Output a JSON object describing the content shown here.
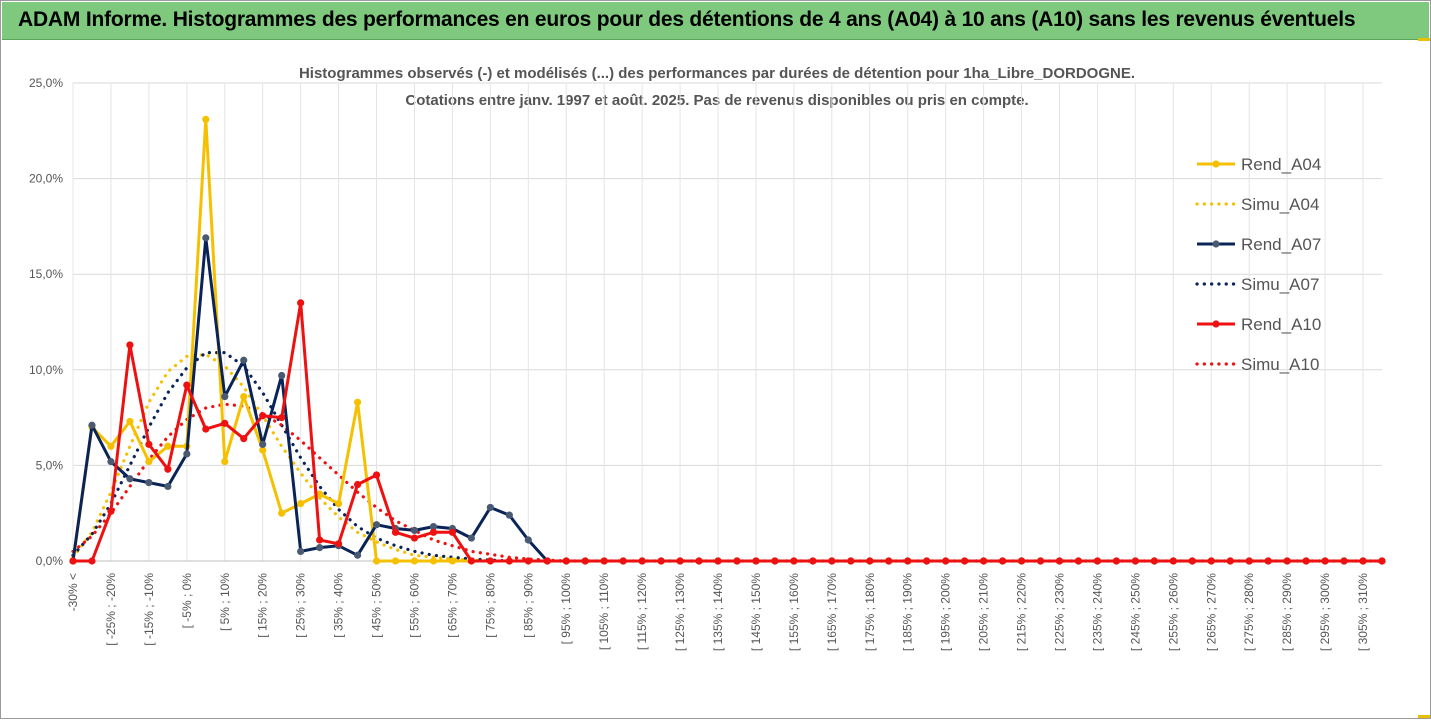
{
  "banner": {
    "title": "ADAM Informe. Histogrammes des performances en euros pour des détentions de 4 ans (A04) à 10 ans (A10) sans les revenus éventuels"
  },
  "colors": {
    "banner_bg": "#7fc97f",
    "A04": "#f5c000",
    "A07": "#0a2458",
    "A10": "#ee1111",
    "grid": "#d9d9d9"
  },
  "chart_data": {
    "type": "line",
    "title_line1": "Histogrammes observés (-) et modélisés (...) des performances par durées de détention pour 1ha_Libre_DORDOGNE.",
    "title_line2": "Cotations entre janv. 1997 et août. 2025. Pas de revenus disponibles ou pris en compte.",
    "ylim": [
      0,
      25
    ],
    "yticks": [
      "0,0%",
      "5,0%",
      "10,0%",
      "15,0%",
      "20,0%",
      "25,0%"
    ],
    "x_labels": [
      "-30% <",
      "[ -25% ; -20%",
      "[ -15% ; -10%",
      "[ -5% ; 0%",
      "[ 5% ; 10%",
      "[ 15% ; 20%",
      "[ 25% ; 30%",
      "[ 35% ; 40%",
      "[ 45% ; 50%",
      "[ 55% ; 60%",
      "[ 65% ; 70%",
      "[ 75% ; 80%",
      "[ 85% ; 90%",
      "[ 95% ; 100%",
      "[ 105% ; 110%",
      "[ 115% ; 120%",
      "[ 125% ; 130%",
      "[ 135% ; 140%",
      "[ 145% ; 150%",
      "[ 155% ; 160%",
      "[ 165% ; 170%",
      "[ 175% ; 180%",
      "[ 185% ; 190%",
      "[ 195% ; 200%",
      "[ 205% ; 210%",
      "[ 215% ; 220%",
      "[ 225% ; 230%",
      "[ 235% ; 240%",
      "[ 245% ; 250%",
      "[ 255% ; 260%",
      "[ 265% ; 270%",
      "[ 275% ; 280%",
      "[ 285% ; 290%",
      "[ 295% ; 300%",
      "[ 305% ; 310%"
    ],
    "series": [
      {
        "name": "Rend_A04",
        "style": "solid",
        "color": "#f5c000",
        "values": [
          0,
          7.0,
          6.0,
          7.3,
          5.2,
          6.0,
          6.0,
          23.1,
          5.2,
          8.6,
          5.8,
          2.5,
          3.0,
          3.5,
          3.0,
          8.3,
          0,
          0,
          0,
          0,
          0,
          0,
          0,
          0,
          0,
          0,
          0,
          0,
          0,
          0,
          0,
          0,
          0,
          0,
          0,
          0,
          0,
          0,
          0,
          0,
          0,
          0,
          0,
          0,
          0,
          0,
          0,
          0,
          0,
          0,
          0,
          0,
          0,
          0,
          0,
          0,
          0,
          0,
          0,
          0,
          0,
          0,
          0,
          0,
          0,
          0,
          0,
          0,
          0,
          0
        ]
      },
      {
        "name": "Simu_A04",
        "style": "dotted",
        "color": "#f5c000",
        "values": [
          0.2,
          1.5,
          3.6,
          6.0,
          8.3,
          9.9,
          10.7,
          10.8,
          10.2,
          9.1,
          7.6,
          6.0,
          4.6,
          3.3,
          2.3,
          1.5,
          1.0,
          0.6,
          0.3,
          0.2,
          0.1,
          0.05,
          0,
          0,
          0,
          0,
          0,
          0,
          0,
          0,
          0,
          0,
          0,
          0,
          0,
          0,
          0,
          0,
          0,
          0,
          0,
          0,
          0,
          0,
          0,
          0,
          0,
          0,
          0,
          0,
          0,
          0,
          0,
          0,
          0,
          0,
          0,
          0,
          0,
          0,
          0,
          0,
          0,
          0,
          0,
          0,
          0,
          0,
          0,
          0
        ]
      },
      {
        "name": "Rend_A07",
        "style": "solid",
        "color": "#0a2458",
        "values": [
          0,
          7.1,
          5.2,
          4.3,
          4.1,
          3.9,
          5.6,
          16.9,
          8.6,
          10.5,
          6.1,
          9.7,
          0.5,
          0.7,
          0.8,
          0.3,
          1.9,
          1.7,
          1.6,
          1.8,
          1.7,
          1.2,
          2.8,
          2.4,
          1.1,
          0,
          0,
          0,
          0,
          0,
          0,
          0,
          0,
          0,
          0,
          0,
          0,
          0,
          0,
          0,
          0,
          0,
          0,
          0,
          0,
          0,
          0,
          0,
          0,
          0,
          0,
          0,
          0,
          0,
          0,
          0,
          0,
          0,
          0,
          0,
          0,
          0,
          0,
          0,
          0,
          0,
          0,
          0,
          0,
          0
        ]
      },
      {
        "name": "Simu_A07",
        "style": "dotted",
        "color": "#0a2458",
        "values": [
          0.3,
          1.4,
          3.0,
          5.0,
          7.0,
          8.8,
          10.1,
          10.9,
          10.9,
          10.2,
          8.8,
          7.1,
          5.4,
          3.9,
          2.7,
          1.8,
          1.2,
          0.8,
          0.5,
          0.3,
          0.2,
          0.1,
          0.05,
          0,
          0,
          0,
          0,
          0,
          0,
          0,
          0,
          0,
          0,
          0,
          0,
          0,
          0,
          0,
          0,
          0,
          0,
          0,
          0,
          0,
          0,
          0,
          0,
          0,
          0,
          0,
          0,
          0,
          0,
          0,
          0,
          0,
          0,
          0,
          0,
          0,
          0,
          0,
          0,
          0,
          0,
          0,
          0,
          0,
          0,
          0
        ]
      },
      {
        "name": "Rend_A10",
        "style": "solid",
        "color": "#ee1111",
        "values": [
          0,
          0,
          2.6,
          11.3,
          6.1,
          4.8,
          9.2,
          6.9,
          7.2,
          6.4,
          7.6,
          7.5,
          13.5,
          1.1,
          0.9,
          4.0,
          4.5,
          1.5,
          1.2,
          1.5,
          1.5,
          0,
          0,
          0,
          0,
          0,
          0,
          0,
          0,
          0,
          0,
          0,
          0,
          0,
          0,
          0,
          0,
          0,
          0,
          0,
          0,
          0,
          0,
          0,
          0,
          0,
          0,
          0,
          0,
          0,
          0,
          0,
          0,
          0,
          0,
          0,
          0,
          0,
          0,
          0,
          0,
          0,
          0,
          0,
          0,
          0,
          0,
          0,
          0,
          0
        ]
      },
      {
        "name": "Simu_A10",
        "style": "dotted",
        "color": "#ee1111",
        "values": [
          0.5,
          1.3,
          2.5,
          3.9,
          5.3,
          6.5,
          7.4,
          8.0,
          8.2,
          8.1,
          7.7,
          7.1,
          6.3,
          5.4,
          4.5,
          3.6,
          2.8,
          2.1,
          1.6,
          1.1,
          0.8,
          0.5,
          0.35,
          0.2,
          0.1,
          0.05,
          0,
          0,
          0,
          0,
          0,
          0,
          0,
          0,
          0,
          0,
          0,
          0,
          0,
          0,
          0,
          0,
          0,
          0,
          0,
          0,
          0,
          0,
          0,
          0,
          0,
          0,
          0,
          0,
          0,
          0,
          0,
          0,
          0,
          0,
          0,
          0,
          0,
          0,
          0,
          0,
          0,
          0,
          0,
          0
        ]
      }
    ],
    "legend_position": "right",
    "grid": true
  }
}
